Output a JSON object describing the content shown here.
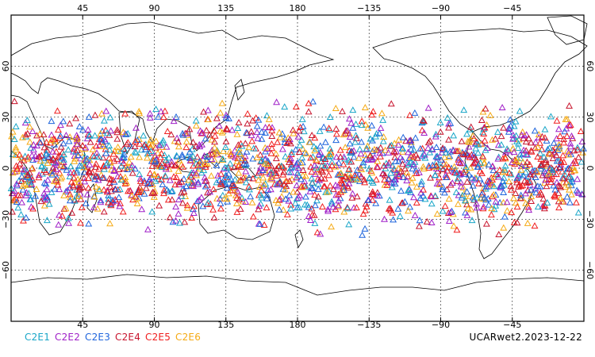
{
  "chart_data": {
    "type": "scatter",
    "projection": "equirectangular",
    "lon_center": 180,
    "xlim": [
      0,
      360
    ],
    "ylim": [
      -90,
      90
    ],
    "grid": true,
    "grid_style": "dotted",
    "marker": "open-triangle",
    "lat_band": [
      -45,
      45
    ],
    "lon_ticks": [
      {
        "lon": 45,
        "label": "45"
      },
      {
        "lon": 90,
        "label": "90"
      },
      {
        "lon": 135,
        "label": "135"
      },
      {
        "lon": 180,
        "label": "180"
      },
      {
        "lon": 225,
        "label": "−135"
      },
      {
        "lon": 270,
        "label": "−90"
      },
      {
        "lon": 315,
        "label": "−45"
      }
    ],
    "lat_ticks": [
      {
        "lat": 60,
        "label": "60"
      },
      {
        "lat": 30,
        "label": "30"
      },
      {
        "lat": 0,
        "label": "0"
      },
      {
        "lat": -30,
        "label": "−30"
      },
      {
        "lat": -60,
        "label": "−60"
      }
    ],
    "series": [
      {
        "name": "C2E1",
        "color": "#19a6c8"
      },
      {
        "name": "C2E2",
        "color": "#a020c8"
      },
      {
        "name": "C2E3",
        "color": "#1e64dc"
      },
      {
        "name": "C2E4",
        "color": "#c8142d"
      },
      {
        "name": "C2E5",
        "color": "#f01e1e"
      },
      {
        "name": "C2E6",
        "color": "#f5aa14"
      }
    ],
    "points_per_series": 330
  },
  "caption": "UCARwet2.2023-12-22"
}
